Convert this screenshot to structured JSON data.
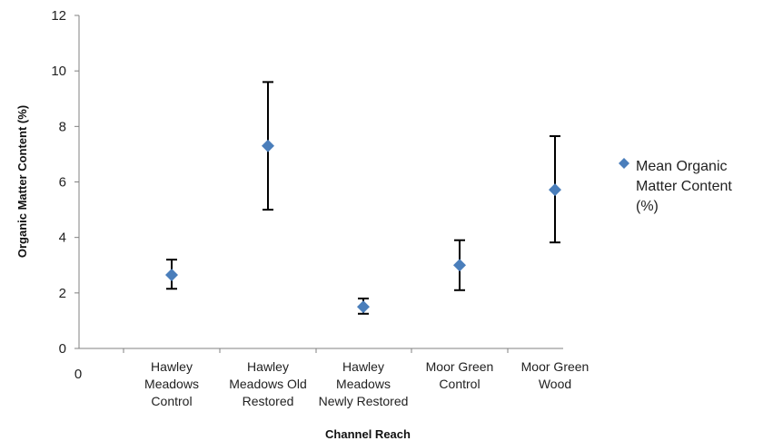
{
  "chart_data": {
    "type": "scatter",
    "title": "",
    "xlabel": "Channel Reach",
    "ylabel": "Organic Matter Content (%)",
    "ylim": [
      0,
      12
    ],
    "yticks": [
      0,
      2,
      4,
      6,
      8,
      10,
      12
    ],
    "x_origin_label": "0",
    "grid": false,
    "legend_position": "right",
    "marker_color": "#4a7ebb",
    "categories": [
      [
        "Hawley",
        "Meadows",
        "Control"
      ],
      [
        "Hawley",
        "Meadows Old",
        "Restored"
      ],
      [
        "Hawley",
        "Meadows",
        "Newly Restored"
      ],
      [
        "Moor Green",
        "Control"
      ],
      [
        "Moor Green",
        "Wood"
      ]
    ],
    "series": [
      {
        "name": [
          "Mean Organic",
          "Matter Content",
          "(%)"
        ],
        "values": [
          2.65,
          7.3,
          1.5,
          3.0,
          5.72
        ],
        "error_upper": [
          3.2,
          9.6,
          1.8,
          3.9,
          7.65
        ],
        "error_lower": [
          2.15,
          5.0,
          1.25,
          2.1,
          3.82
        ]
      }
    ]
  }
}
